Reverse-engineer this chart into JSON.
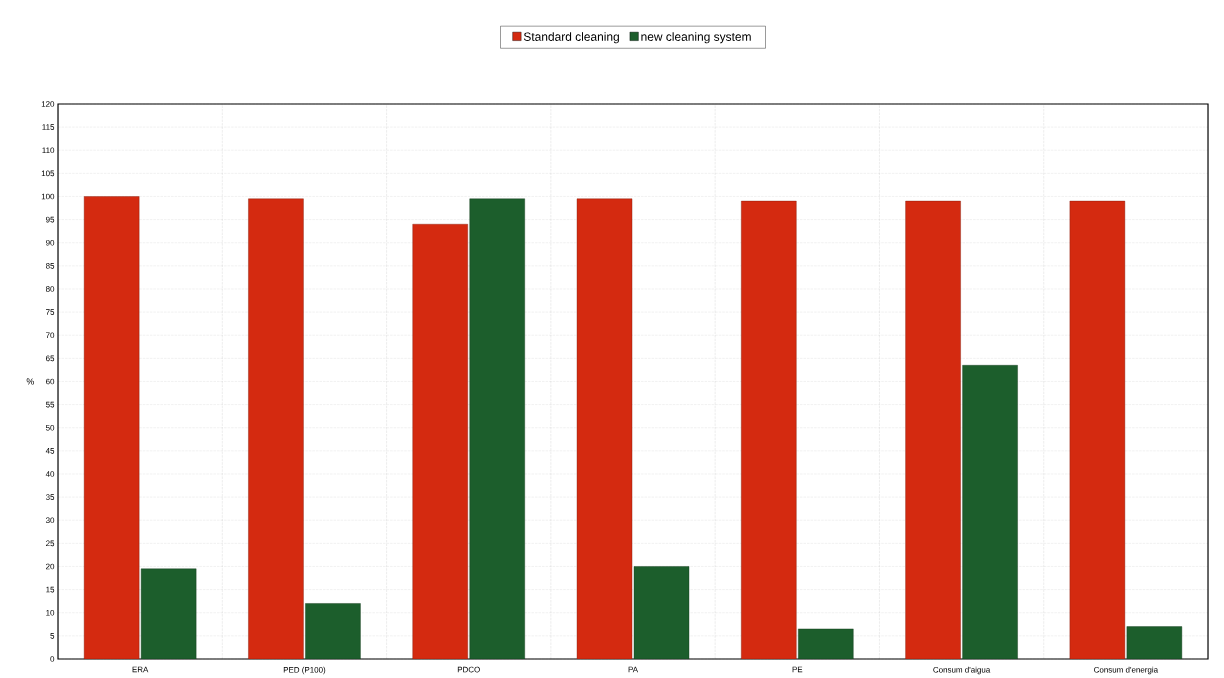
{
  "chart_data": {
    "type": "bar",
    "ylabel": "%",
    "categories": [
      "ERA",
      "PED (P100)",
      "PDCO",
      "PA",
      "PE",
      "Consum d'aigua",
      "Consum d'energia"
    ],
    "series": [
      {
        "name": "Standard cleaning",
        "color": "#d42a10",
        "values": [
          100,
          99.5,
          94,
          99.5,
          99,
          99,
          99
        ]
      },
      {
        "name": "new cleaning system",
        "color": "#1c5e2c",
        "values": [
          19.5,
          12,
          99.5,
          20,
          6.5,
          63.5,
          7
        ]
      }
    ],
    "ylim": [
      0,
      120
    ],
    "yticks": [
      0,
      5,
      10,
      15,
      20,
      25,
      30,
      35,
      40,
      45,
      50,
      55,
      60,
      65,
      70,
      75,
      80,
      85,
      90,
      95,
      100,
      105,
      110,
      115,
      120
    ],
    "grid": true,
    "legend": "top"
  }
}
